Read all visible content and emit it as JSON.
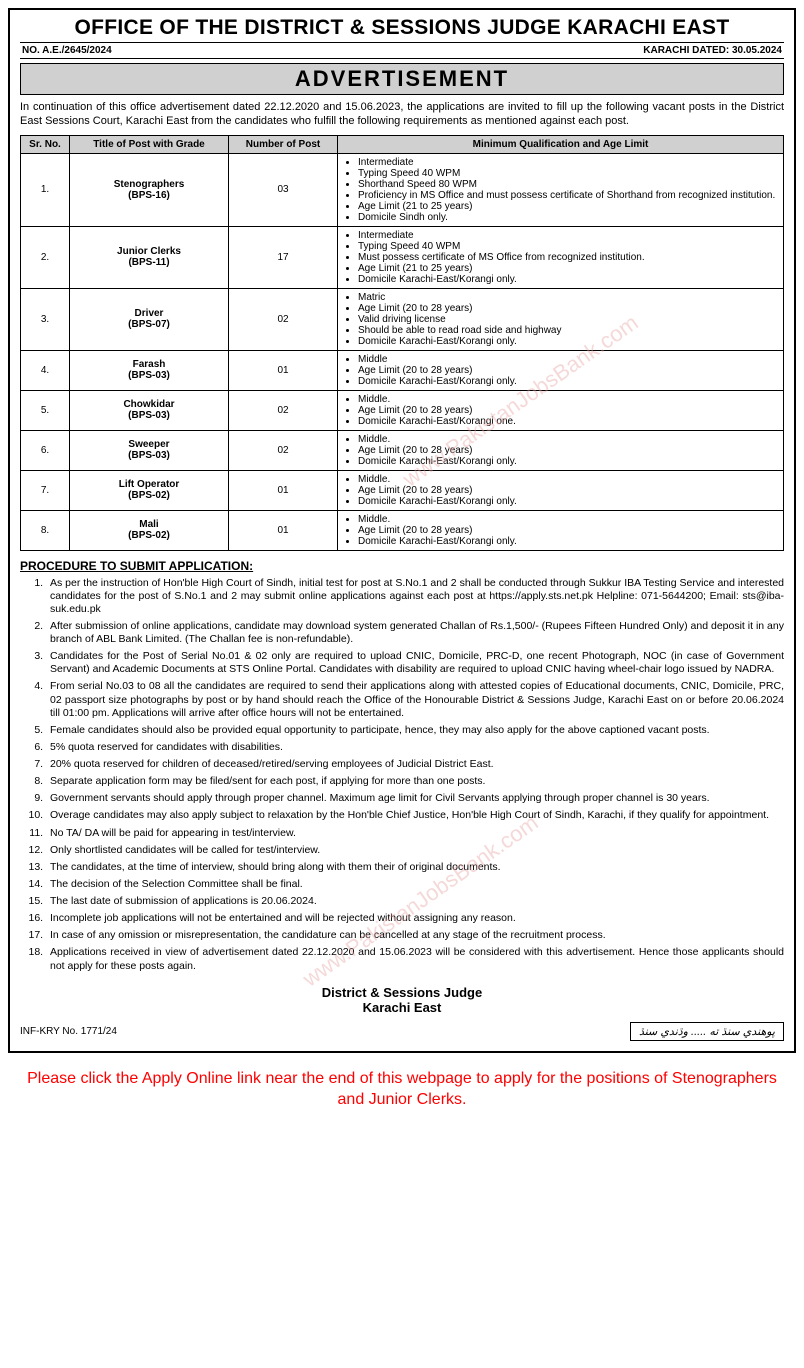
{
  "header": {
    "title": "OFFICE OF THE DISTRICT & SESSIONS JUDGE KARACHI EAST",
    "ref_no": "NO. A.E./2645/2024",
    "dated": "KARACHI DATED: 30.05.2024",
    "ad_label": "ADVERTISEMENT"
  },
  "intro": "In continuation of this office advertisement dated 22.12.2020 and 15.06.2023, the applications are invited to fill up the following vacant posts in the District East Sessions Court, Karachi East from the candidates who fulfill the following requirements as mentioned against each post.",
  "table": {
    "headers": {
      "sr": "Sr. No.",
      "title": "Title of Post with Grade",
      "num": "Number of Post",
      "qual": "Minimum Qualification and Age Limit"
    },
    "rows": [
      {
        "sr": "1.",
        "title": "Stenographers\n(BPS-16)",
        "num": "03",
        "qual": [
          "Intermediate",
          "Typing Speed 40 WPM",
          "Shorthand Speed 80 WPM",
          "Proficiency in MS Office and must possess certificate of Shorthand from recognized institution.",
          "Age Limit (21 to 25 years)",
          "Domicile Sindh only."
        ]
      },
      {
        "sr": "2.",
        "title": "Junior Clerks\n(BPS-11)",
        "num": "17",
        "qual": [
          "Intermediate",
          "Typing Speed 40 WPM",
          "Must possess certificate of MS Office from recognized institution.",
          "Age Limit (21 to 25 years)",
          "Domicile Karachi-East/Korangi only."
        ]
      },
      {
        "sr": "3.",
        "title": "Driver\n(BPS-07)",
        "num": "02",
        "qual": [
          "Matric",
          "Age Limit (20 to 28 years)",
          "Valid driving license",
          "Should be able to read road side and highway",
          "Domicile Karachi-East/Korangi only."
        ]
      },
      {
        "sr": "4.",
        "title": "Farash\n(BPS-03)",
        "num": "01",
        "qual": [
          "Middle",
          "Age Limit (20 to 28 years)",
          "Domicile Karachi-East/Korangi only."
        ]
      },
      {
        "sr": "5.",
        "title": "Chowkidar\n(BPS-03)",
        "num": "02",
        "qual": [
          "Middle.",
          "Age Limit (20 to 28 years)",
          "Domicile Karachi-East/Korangi one."
        ]
      },
      {
        "sr": "6.",
        "title": "Sweeper\n(BPS-03)",
        "num": "02",
        "qual": [
          "Middle.",
          "Age Limit (20 to 28 years)",
          "Domicile Karachi-East/Korangi only."
        ]
      },
      {
        "sr": "7.",
        "title": "Lift Operator\n(BPS-02)",
        "num": "01",
        "qual": [
          "Middle.",
          "Age Limit (20 to 28 years)",
          "Domicile Karachi-East/Korangi only."
        ]
      },
      {
        "sr": "8.",
        "title": "Mali\n(BPS-02)",
        "num": "01",
        "qual": [
          "Middle.",
          "Age Limit (20 to 28 years)",
          "Domicile Karachi-East/Korangi only."
        ]
      }
    ]
  },
  "procedure_title": "PROCEDURE TO SUBMIT APPLICATION:",
  "procedure": [
    "As per the instruction of Hon'ble High Court of Sindh, initial test for post at S.No.1 and 2 shall be conducted through Sukkur IBA Testing Service and interested candidates for the post of S.No.1 and 2 may submit online applications against each post at https://apply.sts.net.pk Helpline: 071-5644200; Email: sts@iba-suk.edu.pk",
    "After submission of online applications, candidate may download system generated Challan of Rs.1,500/- (Rupees Fifteen Hundred Only) and deposit it in any branch of ABL Bank Limited. (The Challan fee is non-refundable).",
    "Candidates for the Post of Serial No.01 & 02 only are required to upload CNIC, Domicile, PRC-D, one recent Photograph, NOC (in case of Government Servant) and Academic Documents at STS Online Portal. Candidates with disability are required to upload CNIC having wheel-chair logo issued by NADRA.",
    "From serial No.03 to 08 all the candidates are required to send their applications along with attested copies of Educational documents, CNIC, Domicile, PRC, 02 passport size photographs by post or by hand should reach the Office of the Honourable District & Sessions Judge, Karachi East on or before 20.06.2024 till 01:00 pm. Applications will arrive after office hours will not be entertained.",
    "Female candidates should also be provided equal opportunity to participate, hence, they may also apply for the above captioned vacant posts.",
    "5% quota reserved for candidates with disabilities.",
    "20% quota reserved for children of deceased/retired/serving employees of Judicial District East.",
    "Separate application form may be filed/sent for each post, if applying for more than one posts.",
    "Government servants should apply through proper channel. Maximum age limit for Civil Servants applying through proper channel is 30 years.",
    "Overage candidates may also apply subject to relaxation by the Hon'ble Chief Justice, Hon'ble High Court of Sindh, Karachi, if they qualify for appointment.",
    "No TA/ DA will be paid for appearing in test/interview.",
    "Only shortlisted candidates will be called for test/interview.",
    "The candidates, at the time of interview, should bring along with them their of original documents.",
    "The decision of the Selection Committee shall be final.",
    "The last date of submission of applications is 20.06.2024.",
    "Incomplete job applications will not be entertained and will be rejected without assigning any reason.",
    "In case of any omission or misrepresentation, the candidature can be cancelled at any stage of the recruitment process.",
    "Applications received in view of advertisement dated 22.12.2020 and 15.06.2023 will be considered with this advertisement. Hence those applicants should not apply for these posts again."
  ],
  "signoff": {
    "line1": "District & Sessions Judge",
    "line2": "Karachi East"
  },
  "footer": {
    "inf": "INF-KRY No. 1771/24",
    "sindhi": "پوهندي سنڌ ته ..... وڌندي سنڌ"
  },
  "apply_note": "Please click the Apply Online link near the end of this webpage to apply for the positions of Stenographers and Junior Clerks.",
  "watermark": "www.PakistanJobsBank.com",
  "colors": {
    "header_bg": "#d0d0d0",
    "border": "#000000",
    "text": "#000000",
    "apply_red": "#ff0000",
    "watermark": "rgba(230,160,160,0.4)"
  }
}
